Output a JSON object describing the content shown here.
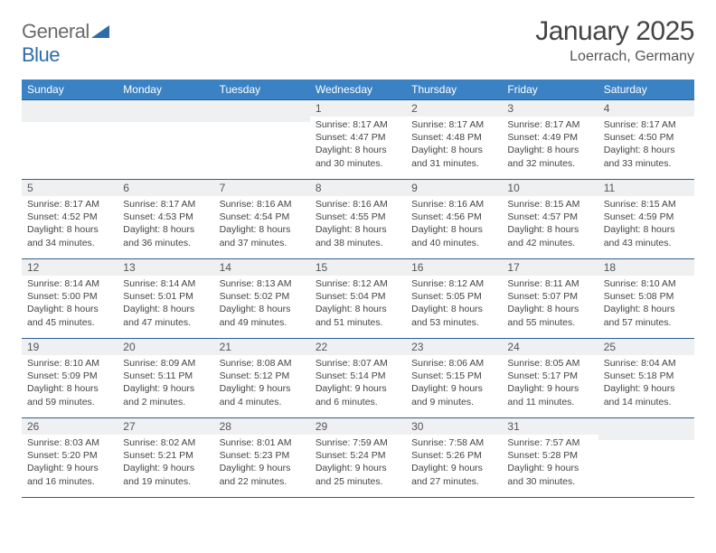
{
  "logo": {
    "word1": "General",
    "word2": "Blue"
  },
  "title": "January 2025",
  "subtitle": "Loerrach, Germany",
  "colors": {
    "header_bg": "#3b82c4",
    "header_text": "#ffffff",
    "border": "#2f5f8f",
    "daynum_bg": "#eef0f2",
    "body_bg": "#ffffff",
    "text": "#3a3a3a"
  },
  "font_sizes": {
    "title": 30,
    "subtitle": 16,
    "weekday": 12,
    "daynum": 12,
    "data": 10.5
  },
  "weekdays": [
    "Sunday",
    "Monday",
    "Tuesday",
    "Wednesday",
    "Thursday",
    "Friday",
    "Saturday"
  ],
  "weeks": [
    [
      null,
      null,
      null,
      {
        "n": "1",
        "sr": "8:17 AM",
        "ss": "4:47 PM",
        "dl": "8 hours and 30 minutes."
      },
      {
        "n": "2",
        "sr": "8:17 AM",
        "ss": "4:48 PM",
        "dl": "8 hours and 31 minutes."
      },
      {
        "n": "3",
        "sr": "8:17 AM",
        "ss": "4:49 PM",
        "dl": "8 hours and 32 minutes."
      },
      {
        "n": "4",
        "sr": "8:17 AM",
        "ss": "4:50 PM",
        "dl": "8 hours and 33 minutes."
      }
    ],
    [
      {
        "n": "5",
        "sr": "8:17 AM",
        "ss": "4:52 PM",
        "dl": "8 hours and 34 minutes."
      },
      {
        "n": "6",
        "sr": "8:17 AM",
        "ss": "4:53 PM",
        "dl": "8 hours and 36 minutes."
      },
      {
        "n": "7",
        "sr": "8:16 AM",
        "ss": "4:54 PM",
        "dl": "8 hours and 37 minutes."
      },
      {
        "n": "8",
        "sr": "8:16 AM",
        "ss": "4:55 PM",
        "dl": "8 hours and 38 minutes."
      },
      {
        "n": "9",
        "sr": "8:16 AM",
        "ss": "4:56 PM",
        "dl": "8 hours and 40 minutes."
      },
      {
        "n": "10",
        "sr": "8:15 AM",
        "ss": "4:57 PM",
        "dl": "8 hours and 42 minutes."
      },
      {
        "n": "11",
        "sr": "8:15 AM",
        "ss": "4:59 PM",
        "dl": "8 hours and 43 minutes."
      }
    ],
    [
      {
        "n": "12",
        "sr": "8:14 AM",
        "ss": "5:00 PM",
        "dl": "8 hours and 45 minutes."
      },
      {
        "n": "13",
        "sr": "8:14 AM",
        "ss": "5:01 PM",
        "dl": "8 hours and 47 minutes."
      },
      {
        "n": "14",
        "sr": "8:13 AM",
        "ss": "5:02 PM",
        "dl": "8 hours and 49 minutes."
      },
      {
        "n": "15",
        "sr": "8:12 AM",
        "ss": "5:04 PM",
        "dl": "8 hours and 51 minutes."
      },
      {
        "n": "16",
        "sr": "8:12 AM",
        "ss": "5:05 PM",
        "dl": "8 hours and 53 minutes."
      },
      {
        "n": "17",
        "sr": "8:11 AM",
        "ss": "5:07 PM",
        "dl": "8 hours and 55 minutes."
      },
      {
        "n": "18",
        "sr": "8:10 AM",
        "ss": "5:08 PM",
        "dl": "8 hours and 57 minutes."
      }
    ],
    [
      {
        "n": "19",
        "sr": "8:10 AM",
        "ss": "5:09 PM",
        "dl": "8 hours and 59 minutes."
      },
      {
        "n": "20",
        "sr": "8:09 AM",
        "ss": "5:11 PM",
        "dl": "9 hours and 2 minutes."
      },
      {
        "n": "21",
        "sr": "8:08 AM",
        "ss": "5:12 PM",
        "dl": "9 hours and 4 minutes."
      },
      {
        "n": "22",
        "sr": "8:07 AM",
        "ss": "5:14 PM",
        "dl": "9 hours and 6 minutes."
      },
      {
        "n": "23",
        "sr": "8:06 AM",
        "ss": "5:15 PM",
        "dl": "9 hours and 9 minutes."
      },
      {
        "n": "24",
        "sr": "8:05 AM",
        "ss": "5:17 PM",
        "dl": "9 hours and 11 minutes."
      },
      {
        "n": "25",
        "sr": "8:04 AM",
        "ss": "5:18 PM",
        "dl": "9 hours and 14 minutes."
      }
    ],
    [
      {
        "n": "26",
        "sr": "8:03 AM",
        "ss": "5:20 PM",
        "dl": "9 hours and 16 minutes."
      },
      {
        "n": "27",
        "sr": "8:02 AM",
        "ss": "5:21 PM",
        "dl": "9 hours and 19 minutes."
      },
      {
        "n": "28",
        "sr": "8:01 AM",
        "ss": "5:23 PM",
        "dl": "9 hours and 22 minutes."
      },
      {
        "n": "29",
        "sr": "7:59 AM",
        "ss": "5:24 PM",
        "dl": "9 hours and 25 minutes."
      },
      {
        "n": "30",
        "sr": "7:58 AM",
        "ss": "5:26 PM",
        "dl": "9 hours and 27 minutes."
      },
      {
        "n": "31",
        "sr": "7:57 AM",
        "ss": "5:28 PM",
        "dl": "9 hours and 30 minutes."
      },
      null
    ]
  ],
  "labels": {
    "sunrise": "Sunrise:",
    "sunset": "Sunset:",
    "daylight": "Daylight:"
  }
}
